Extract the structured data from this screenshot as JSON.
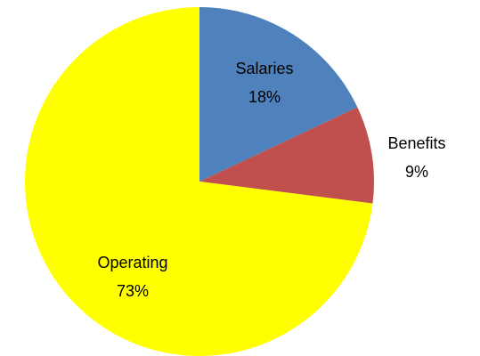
{
  "chart_data": {
    "type": "pie",
    "categories": [
      "Salaries",
      "Benefits",
      "Operating"
    ],
    "values": [
      18,
      9,
      73
    ],
    "value_labels": [
      "18%",
      "9%",
      "73%"
    ],
    "colors": [
      "#4f81bd",
      "#c0504d",
      "#ffff00"
    ]
  }
}
